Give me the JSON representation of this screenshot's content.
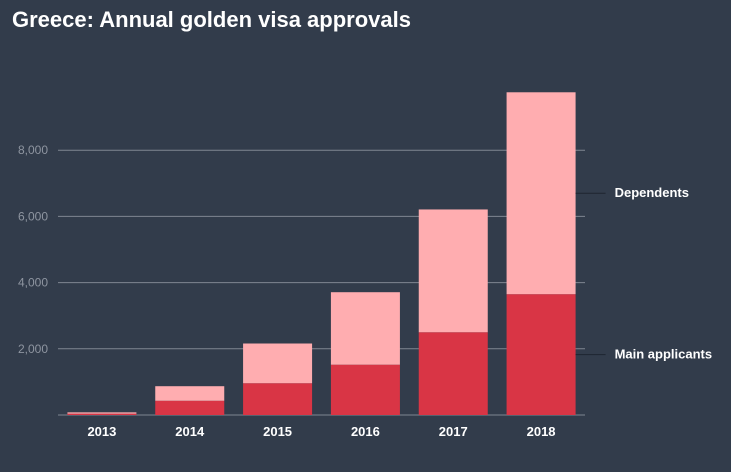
{
  "chart_data": {
    "type": "bar",
    "stacked": true,
    "title": "Greece: Annual golden visa approvals",
    "xlabel": "",
    "ylabel": "",
    "categories": [
      "2013",
      "2014",
      "2015",
      "2016",
      "2017",
      "2018"
    ],
    "series": [
      {
        "name": "Main applicants",
        "values": [
          40,
          430,
          960,
          1520,
          2500,
          3650
        ],
        "color": "#d93545"
      },
      {
        "name": "Dependents",
        "values": [
          40,
          440,
          1200,
          2190,
          3710,
          6100
        ],
        "color": "#ffadb0"
      }
    ],
    "ylim": [
      0,
      10000
    ],
    "yticks": [
      2000,
      4000,
      6000,
      8000
    ],
    "ytick_labels": [
      "2,000",
      "4,000",
      "6,000",
      "8,000"
    ],
    "grid": true,
    "legend": "right, labels next to last bar",
    "colors": {
      "background": "#323c4b",
      "grid": "#7f8691",
      "tick_text": "#8e95a0",
      "label_text": "#ffffff"
    }
  }
}
